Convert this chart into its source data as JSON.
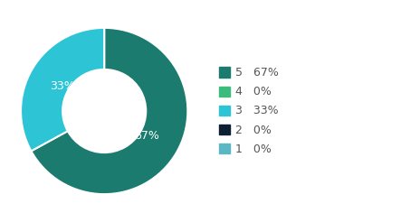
{
  "slices": [
    {
      "label": "5",
      "pct": 67,
      "color": "#1b7b6e"
    },
    {
      "label": "4",
      "pct": 0,
      "color": "#3dbb7c"
    },
    {
      "label": "3",
      "pct": 33,
      "color": "#2dc5d6"
    },
    {
      "label": "2",
      "pct": 0,
      "color": "#0d1f33"
    },
    {
      "label": "1",
      "pct": 0,
      "color": "#5ab8c4"
    }
  ],
  "donut_hole": 0.5,
  "background_color": "#ffffff",
  "text_color": "#ffffff",
  "label_fontsize": 9,
  "legend_fontsize": 9,
  "legend_label_color": "#555555",
  "start_angle": 90
}
